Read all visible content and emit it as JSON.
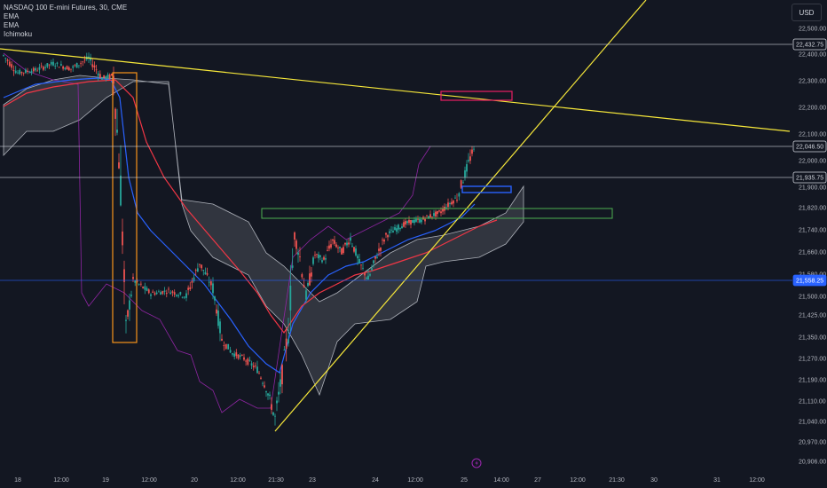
{
  "legend": {
    "symbol": "NASDAQ 100 E-mini Futures, 30, CME",
    "indicators": [
      "EMA",
      "EMA",
      "Ichimoku"
    ]
  },
  "currency_label": "USD",
  "chart_data": {
    "type": "candlestick",
    "title": "NASDAQ 100 E-mini Futures, 30, CME",
    "y_ticks": [
      22500,
      22400,
      22300,
      22200,
      22100,
      22000,
      21900,
      21820,
      21740,
      21660,
      21580,
      21500,
      21425,
      21350,
      21270,
      21190,
      21110,
      21040,
      20970,
      20906
    ],
    "y_tick_labels": [
      "22,500.00",
      "22,400.00",
      "22,300.00",
      "22,200.00",
      "22,100.00",
      "22,000.00",
      "21,900.00",
      "21,820.00",
      "21,740.00",
      "21,660.00",
      "21,580.00",
      "21,500.00",
      "21,425.00",
      "21,350.00",
      "21,270.00",
      "21,190.00",
      "21,110.00",
      "21,040.00",
      "20,970.00",
      "20,906.00"
    ],
    "x_tick_labels": [
      "18",
      "12:00",
      "19",
      "12:00",
      "20",
      "12:00",
      "21:30",
      "23",
      "24",
      "12:00",
      "25",
      "14:00",
      "27",
      "12:00",
      "21:30",
      "30",
      "31",
      "12:00"
    ],
    "price_levels": [
      {
        "label": "22,432.75",
        "value": 22432.75,
        "color": "#d1d4dc"
      },
      {
        "label": "22,046.50",
        "value": 22046.5,
        "color": "#d1d4dc"
      },
      {
        "label": "21,935.75",
        "value": 21935.75,
        "color": "#d1d4dc"
      },
      {
        "label": "21,558.25",
        "value": 21558.25,
        "color": "#2962ff"
      }
    ],
    "series": [
      {
        "name": "Price",
        "color_up": "#26a69a",
        "color_down": "#ef5350",
        "x": [
          "18",
          "12:00",
          "19",
          "12:00",
          "20",
          "12:00",
          "21:30",
          "23",
          "24",
          "12:00",
          "25"
        ],
        "values": [
          22400,
          22320,
          22310,
          21480,
          21560,
          21350,
          21030,
          21650,
          21610,
          21770,
          22040
        ]
      },
      {
        "name": "EMA",
        "color": "#2962ff"
      },
      {
        "name": "EMA",
        "color": "#f23645"
      },
      {
        "name": "Ichimoku",
        "color": "#d1d4dc"
      }
    ],
    "colors": {
      "background": "#131722",
      "trendline": "#f7e83a",
      "lagging_span": "#9c27b0",
      "zone_orange": "#f7931a",
      "zone_green": "#4caf50",
      "zone_blue": "#2962ff",
      "zone_pink": "#e91e63"
    },
    "grid": false
  }
}
